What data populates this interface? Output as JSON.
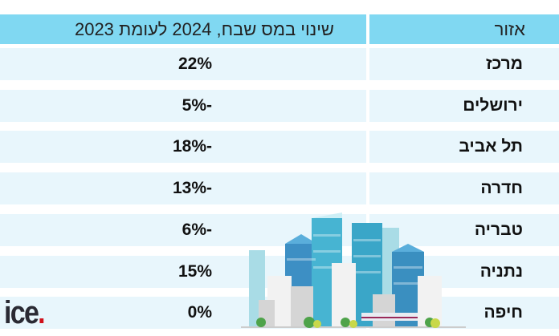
{
  "table": {
    "headers": {
      "region": "אזור",
      "change": "שינוי במס שבח, 2024 לעומת 2023"
    },
    "rows": [
      {
        "region": "מרכז",
        "change": "22%"
      },
      {
        "region": "ירושלים",
        "change": "-5%"
      },
      {
        "region": "תל אביב",
        "change": "-18%"
      },
      {
        "region": "חדרה",
        "change": "-13%"
      },
      {
        "region": "טבריה",
        "change": "-6%"
      },
      {
        "region": "נתניה",
        "change": "15%"
      },
      {
        "region": "חיפה",
        "change": "0%"
      }
    ]
  },
  "logo": {
    "text": "ice",
    "dot": "."
  },
  "colors": {
    "header": "#80d8f2",
    "row": "#e8f6fc",
    "logo_dot": "#d0101a"
  }
}
